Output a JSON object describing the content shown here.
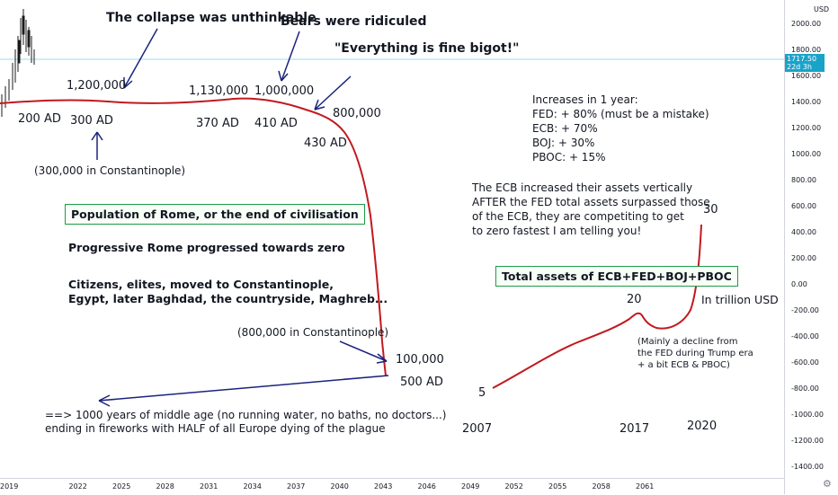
{
  "axis": {
    "currency": "USD",
    "y_ticks": [
      "2000.00",
      "1800.00",
      "1600.00",
      "1400.00",
      "1200.00",
      "1000.00",
      "800.00",
      "600.00",
      "400.00",
      "200.00",
      "0.00",
      "-200.00",
      "-400.00",
      "-600.00",
      "-800.00",
      "-1000.00",
      "-1200.00",
      "-1400.00"
    ],
    "x_ticks": [
      "2019",
      "2022",
      "2025",
      "2028",
      "2031",
      "2034",
      "2037",
      "2040",
      "2043",
      "2046",
      "2049",
      "2052",
      "2055",
      "2058",
      "2061"
    ],
    "last_price": "1717.50",
    "countdown": "22d 3h"
  },
  "annotations": {
    "collapse": "The collapse was unthinkable",
    "bears": "Bears were ridiculed",
    "fine": "\"Everything is fine bigot!\"",
    "pop_1200000": "1,200,000",
    "pop_1130000": "1,130,000",
    "pop_1000000": "1,000,000",
    "pop_800000": "800,000",
    "ad_200": "200 AD",
    "ad_300": "300 AD",
    "ad_370": "370 AD",
    "ad_410": "410 AD",
    "ad_430": "430 AD",
    "constantinople_300": "(300,000 in Constantinople)",
    "rome_box": "Population of Rome, or the end of civilisation",
    "progressive": "Progressive Rome progressed towards zero",
    "citizens_1": "Citizens, elites, moved to Constantinople,",
    "citizens_2": "Egypt, later Baghdad, the countryside, Maghreb...",
    "constantinople_800": "(800,000 in Constantinople)",
    "pop_100000": "100,000",
    "ad_500": "500 AD",
    "middle_age_1": "==> 1000 years of middle age (no running water, no baths, no doctors...)",
    "middle_age_2": "ending in fireworks with HALF of all Europe dying of the plague",
    "increases_title": "Increases in 1 year:",
    "inc_fed": "FED: + 80% (must be a mistake)",
    "inc_ecb": "ECB: + 70%",
    "inc_boj": "BOJ: + 30%",
    "inc_pboc": "PBOC: + 15%",
    "ecb_1": "The ECB increased their assets vertically",
    "ecb_2": "AFTER the FED total assets surpassed those",
    "ecb_3": "of the ECB, they are competiting to get",
    "ecb_4": "to zero fastest I am telling you!",
    "assets_box": "Total assets of ECB+FED+BOJ+PBOC",
    "val_30": "30",
    "val_20": "20",
    "val_5": "5",
    "trillion": "In trillion USD",
    "decline_1": "(Mainly a decline from",
    "decline_2": "the FED during Trump era",
    "decline_3": "+ a bit ECB & PBOC)",
    "year_2007": "2007",
    "year_2017": "2017",
    "year_2020": "2020"
  },
  "colors": {
    "drawing_red": "#c2191f",
    "arrow_navy": "#1a237e",
    "box_green": "#1e9a4a",
    "price_tag": "#1aa3c9"
  }
}
